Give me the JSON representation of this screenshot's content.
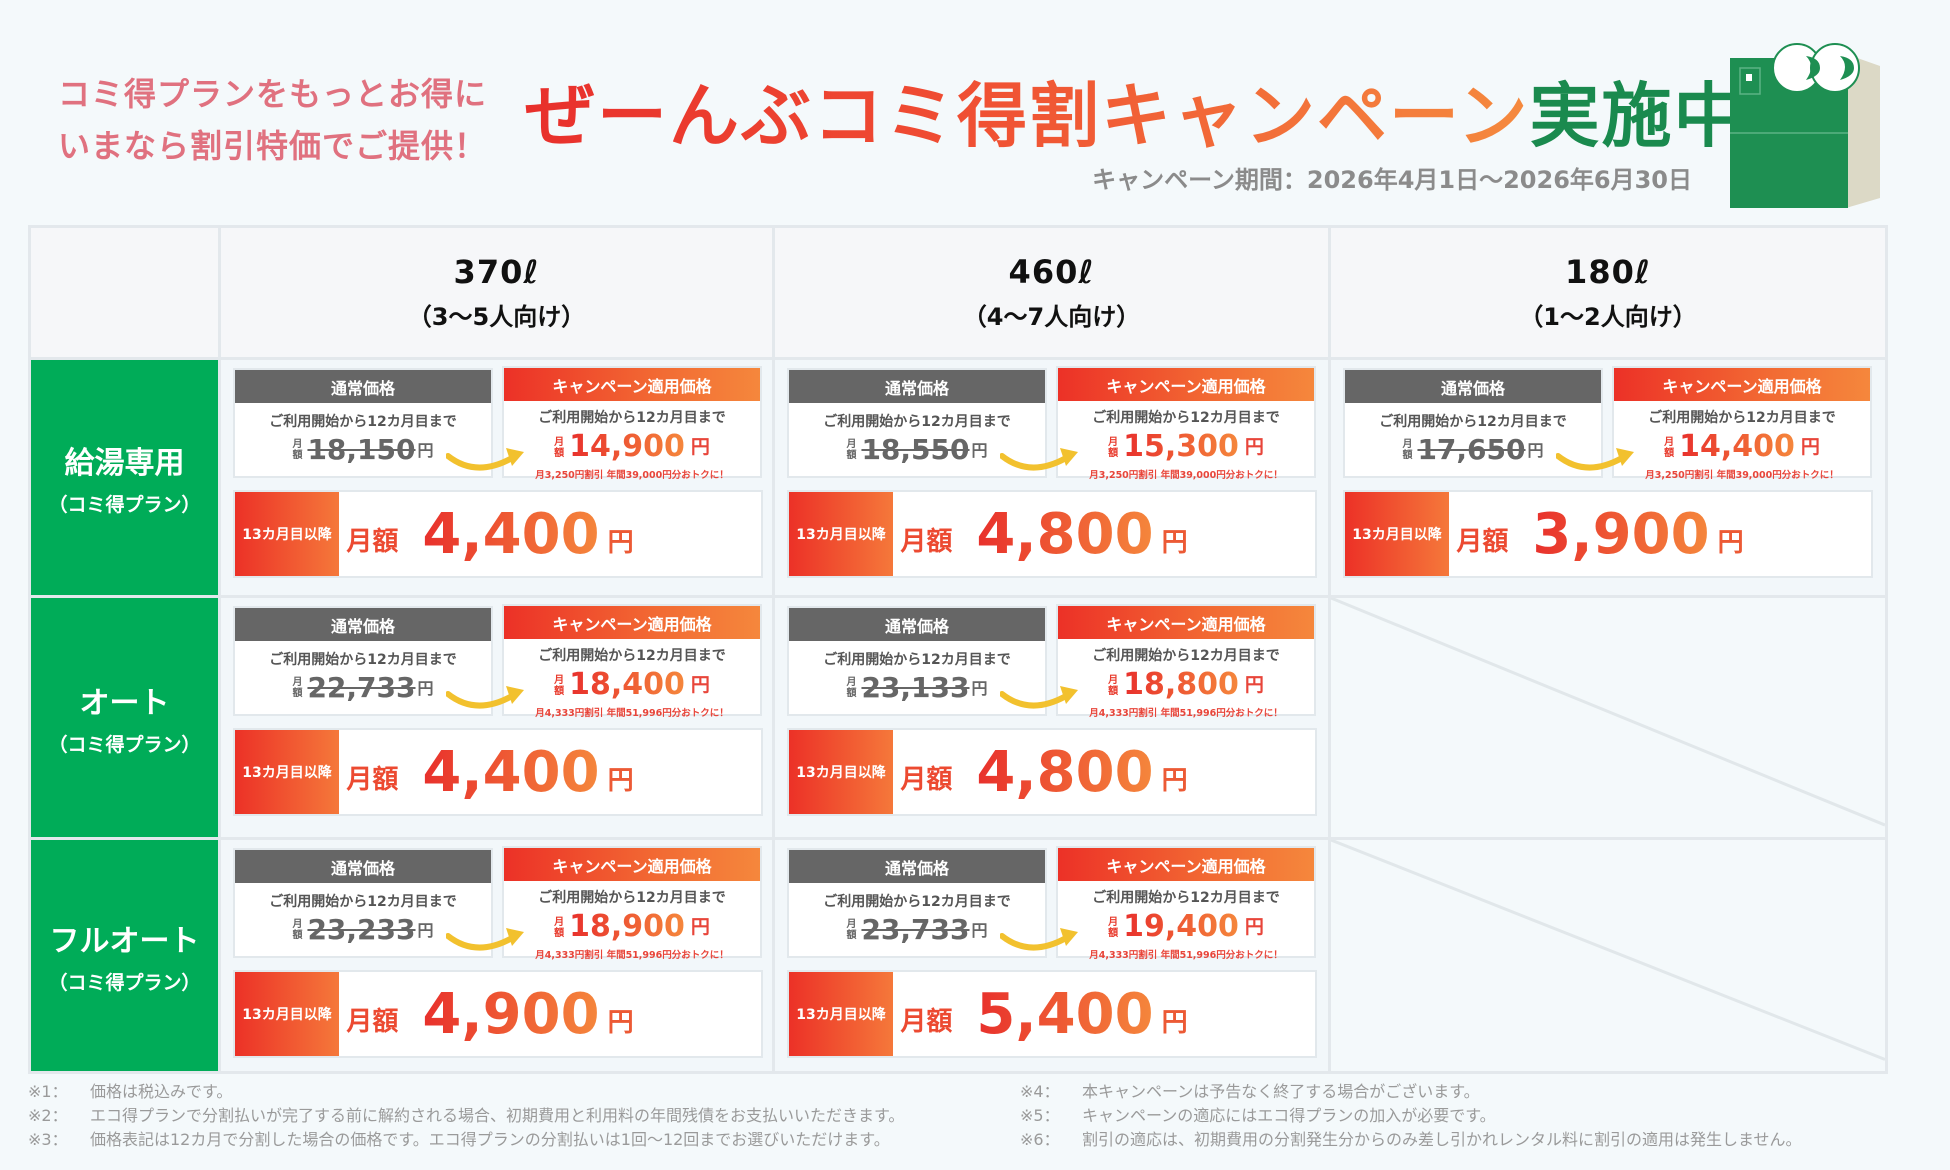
{
  "header": {
    "tagline_lines": [
      "コミ得プランをもっとお得に",
      "いまなら割引特価でご提供！"
    ],
    "title_main": "ぜーんぶコミ得割キャンペーン",
    "title_suffix": "実施中！",
    "period": "キャンペーン期間：2026年4月1日〜2026年6月30日",
    "mascot_icon": "refrigerator-mascot-icon"
  },
  "colors": {
    "green": "#00ac58",
    "title_green": "#1a8a4e",
    "red": "#e8302c",
    "orange": "#f5873c",
    "gray_bar": "#666666",
    "tagline_pink": "#e0717f"
  },
  "labels": {
    "normal_price": "通常価格",
    "campaign_price": "キャンペーン適用価格",
    "period_12": "ご利用開始から12カ月目まで",
    "monthly_vertical": "月額",
    "yen": "円",
    "after_13": "13カ月目以降",
    "monthly": "月額"
  },
  "columns": [
    {
      "capacity": "370ℓ",
      "household": "（3〜5人向け）"
    },
    {
      "capacity": "460ℓ",
      "household": "（4〜7人向け）"
    },
    {
      "capacity": "180ℓ",
      "household": "（1〜2人向け）"
    }
  ],
  "rows": [
    {
      "name": "給湯専用",
      "plan": "（コミ得プラン）",
      "cells": [
        {
          "normal": "18,150",
          "campaign": "14,900",
          "savings": "月3,250円割引 年間39,000円分おトクに！",
          "after": "4,400"
        },
        {
          "normal": "18,550",
          "campaign": "15,300",
          "savings": "月3,250円割引 年間39,000円分おトクに！",
          "after": "4,800"
        },
        {
          "normal": "17,650",
          "campaign": "14,400",
          "savings": "月3,250円割引 年間39,000円分おトクに！",
          "after": "3,900"
        }
      ]
    },
    {
      "name": "オート",
      "plan": "（コミ得プラン）",
      "cells": [
        {
          "normal": "22,733",
          "campaign": "18,400",
          "savings": "月4,333円割引 年間51,996円分おトクに！",
          "after": "4,400"
        },
        {
          "normal": "23,133",
          "campaign": "18,800",
          "savings": "月4,333円割引 年間51,996円分おトクに！",
          "after": "4,800"
        },
        null
      ]
    },
    {
      "name": "フルオート",
      "plan": "（コミ得プラン）",
      "cells": [
        {
          "normal": "23,233",
          "campaign": "18,900",
          "savings": "月4,333円割引 年間51,996円分おトクに！",
          "after": "4,900"
        },
        {
          "normal": "23,733",
          "campaign": "19,400",
          "savings": "月4,333円割引 年間51,996円分おトクに！",
          "after": "5,400"
        },
        null
      ]
    }
  ],
  "notes_left": [
    {
      "key": "※1：",
      "text": "価格は税込みです。"
    },
    {
      "key": "※2：",
      "text": "エコ得プランで分割払いが完了する前に解約される場合、初期費用と利用料の年間残債をお支払いいただきます。"
    },
    {
      "key": "※3：",
      "text": "価格表記は12カ月で分割した場合の価格です。エコ得プランの分割払いは1回〜12回までお選びいただけます。"
    }
  ],
  "notes_right": [
    {
      "key": "※4：",
      "text": "本キャンペーンは予告なく終了する場合がございます。"
    },
    {
      "key": "※5：",
      "text": "キャンペーンの適応にはエコ得プランの加入が必要です。"
    },
    {
      "key": "※6：",
      "text": "割引の適応は、初期費用の分割発生分からのみ差し引かれレンタル料に割引の適用は発生しません。"
    }
  ]
}
